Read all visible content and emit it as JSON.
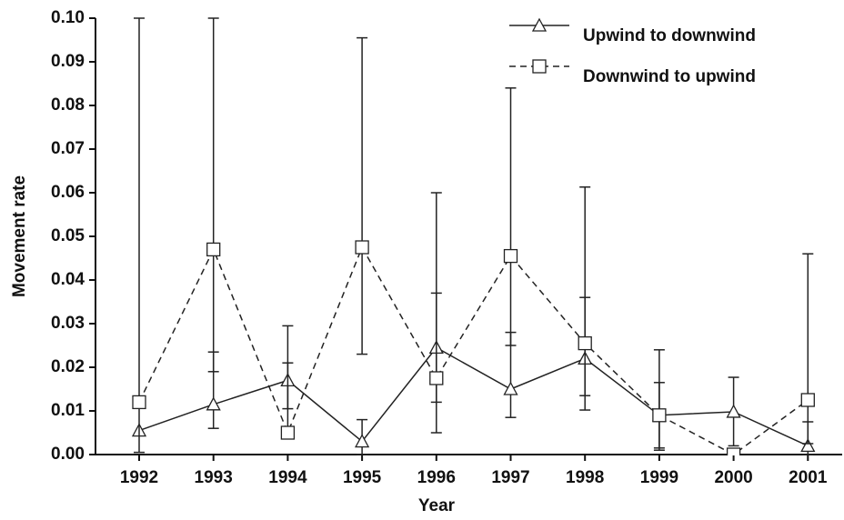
{
  "chart_data": {
    "type": "line",
    "x_label": "Year",
    "y_label": "Movement rate",
    "categories": [
      "1992",
      "1993",
      "1994",
      "1995",
      "1996",
      "1997",
      "1998",
      "1999",
      "2000",
      "2001"
    ],
    "ylim": [
      0,
      0.1
    ],
    "yticks": [
      {
        "value": 0,
        "label": "0.00"
      },
      {
        "value": 0.01,
        "label": "0.01"
      },
      {
        "value": 0.02,
        "label": "0.02"
      },
      {
        "value": 0.03,
        "label": "0.03"
      },
      {
        "value": 0.04,
        "label": "0.04"
      },
      {
        "value": 0.05,
        "label": "0.05"
      },
      {
        "value": 0.06,
        "label": "0.06"
      },
      {
        "value": 0.07,
        "label": "0.07"
      },
      {
        "value": 0.08,
        "label": "0.08"
      },
      {
        "value": 0.09,
        "label": "0.09"
      },
      {
        "value": 0.1,
        "label": "0.10"
      }
    ],
    "legend": "upper right",
    "series": [
      {
        "name": "Upwind to downwind",
        "color": "#222222",
        "line_style": "solid",
        "marker": "triangle",
        "values": [
          0.0055,
          0.0115,
          0.017,
          0.003,
          0.0245,
          0.015,
          0.022,
          0.009,
          0.0098,
          0.002
        ],
        "err_low": [
          null,
          0.006,
          0.0105,
          0.0,
          0.012,
          0.0085,
          0.0102,
          0.0015,
          0.002,
          0.0
        ],
        "err_high": [
          null,
          0.0235,
          0.0295,
          0.008,
          0.037,
          0.028,
          0.036,
          0.0165,
          0.0177,
          0.0075
        ]
      },
      {
        "name": "Downwind to upwind",
        "color": "#222222",
        "line_style": "dashed",
        "marker": "square",
        "values": [
          0.012,
          0.047,
          0.005,
          0.0475,
          0.0175,
          0.0455,
          0.0255,
          0.009,
          0.0,
          0.0125
        ],
        "err_low": [
          0.0005,
          0.019,
          0.005,
          0.023,
          0.005,
          0.025,
          0.0135,
          0.001,
          null,
          0.0025
        ],
        "err_high": [
          0.1,
          0.1,
          0.021,
          0.0955,
          0.06,
          0.084,
          0.0613,
          0.024,
          null,
          0.046
        ]
      }
    ]
  }
}
